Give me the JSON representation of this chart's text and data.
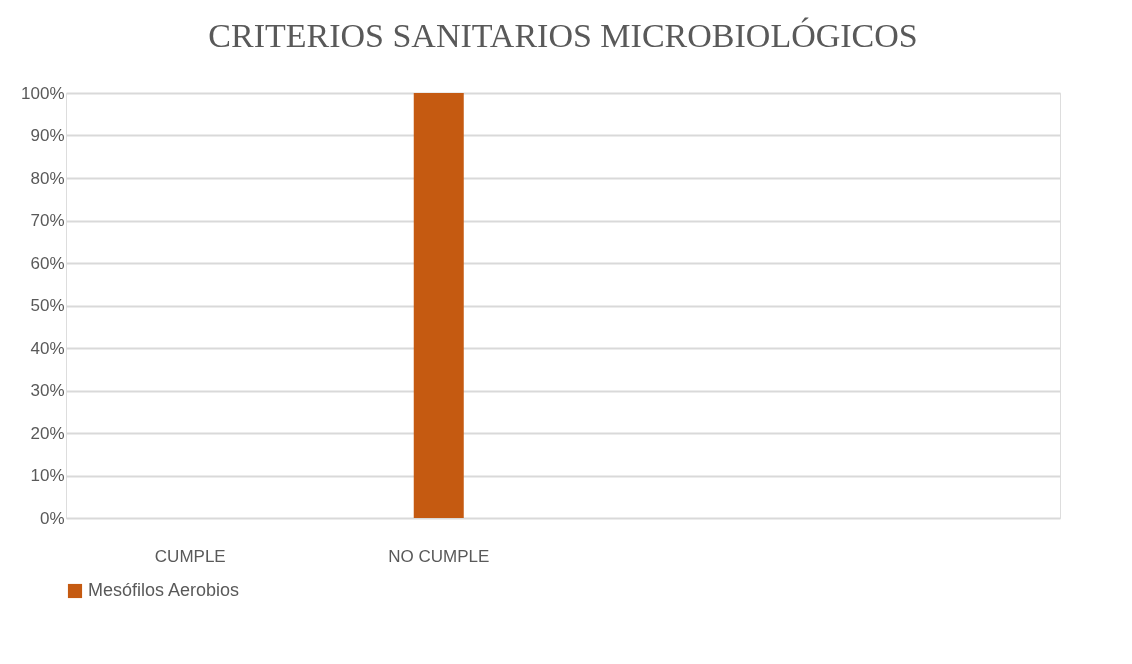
{
  "chart_data": {
    "type": "bar",
    "title": "CRITERIOS SANITARIOS MICROBIOLÓGICOS",
    "categories": [
      "CUMPLE",
      "NO CUMPLE",
      null,
      null
    ],
    "series": [
      {
        "name": "Mesófilos Aerobios",
        "color": "#c55a11",
        "values": [
          0,
          100,
          null,
          null
        ]
      }
    ],
    "ylim": [
      0,
      100
    ],
    "yticks": [
      {
        "value": 0,
        "label": "0%"
      },
      {
        "value": 10,
        "label": "10%"
      },
      {
        "value": 20,
        "label": "20%"
      },
      {
        "value": 30,
        "label": "30%"
      },
      {
        "value": 40,
        "label": "40%"
      },
      {
        "value": 50,
        "label": "50%"
      },
      {
        "value": 60,
        "label": "60%"
      },
      {
        "value": 70,
        "label": "70%"
      },
      {
        "value": 80,
        "label": "80%"
      },
      {
        "value": 90,
        "label": "90%"
      },
      {
        "value": 100,
        "label": "100%"
      }
    ],
    "grid": "y",
    "legend": "bottom"
  }
}
